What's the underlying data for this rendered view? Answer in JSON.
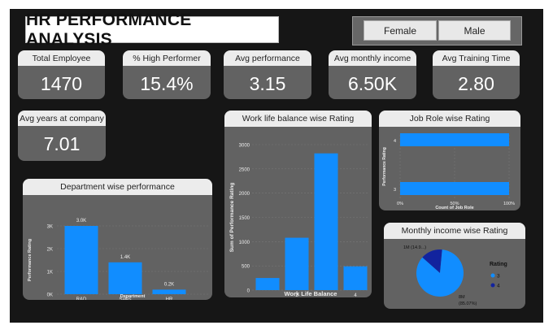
{
  "dashboard": {
    "title": "HR PERFORMANCE ANALYSIS"
  },
  "slicer": {
    "options": [
      "Female",
      "Male"
    ]
  },
  "kpis": [
    {
      "label": "Total Employee",
      "value": "1470"
    },
    {
      "label": "% High Performer",
      "value": "15.4%"
    },
    {
      "label": "Avg performance",
      "value": "3.15"
    },
    {
      "label": "Avg monthly income",
      "value": "6.50K"
    },
    {
      "label": "Avg Training Time",
      "value": "2.80"
    },
    {
      "label": "Avg years at company",
      "value": "7.01"
    }
  ],
  "colors": {
    "bar": "#118dff",
    "dark": "#12239e",
    "card_bg": "#626262",
    "header_bg": "#ececec"
  },
  "chart_data": [
    {
      "type": "bar",
      "title": "Department wise performance",
      "xlabel": "Department",
      "ylabel": "Performance Rating",
      "categories": [
        "R&D",
        "Sales",
        "HR"
      ],
      "values": [
        3000,
        1400,
        200
      ],
      "data_labels": [
        "3.0K",
        "1.4K",
        "0.2K"
      ],
      "yticks": [
        "0K",
        "1K",
        "2K",
        "3K"
      ],
      "ylim": [
        0,
        3000
      ]
    },
    {
      "type": "bar",
      "title": "Work life balance wise Rating",
      "xlabel": "Work Life Balance",
      "ylabel": "Sum of Performance Rating",
      "x": [
        1,
        2,
        3,
        4
      ],
      "xticks": [
        "2",
        "4"
      ],
      "values": [
        250,
        1080,
        2820,
        490
      ],
      "yticks": [
        "0",
        "500",
        "1000",
        "1500",
        "2000",
        "2500",
        "3000"
      ],
      "ylim": [
        0,
        3000
      ]
    },
    {
      "type": "bar",
      "title": "Job Role wise Rating",
      "orientation": "horizontal",
      "xlabel": "Count of Job Role",
      "ylabel": "Performance Rating",
      "categories": [
        "4",
        "3"
      ],
      "values": [
        100,
        100
      ],
      "xticks": [
        "0%",
        "50%",
        "100%"
      ],
      "xlim": [
        0,
        100
      ]
    },
    {
      "type": "pie",
      "title": "Monthly income wise Rating",
      "legend_title": "Rating",
      "legend": [
        "3",
        "4"
      ],
      "slices": [
        {
          "name": "3",
          "label": "8M",
          "pct_label": "(85.07%)",
          "share": 85.07
        },
        {
          "name": "4",
          "label": "1M (14.9...)",
          "share": 14.93
        }
      ]
    }
  ]
}
